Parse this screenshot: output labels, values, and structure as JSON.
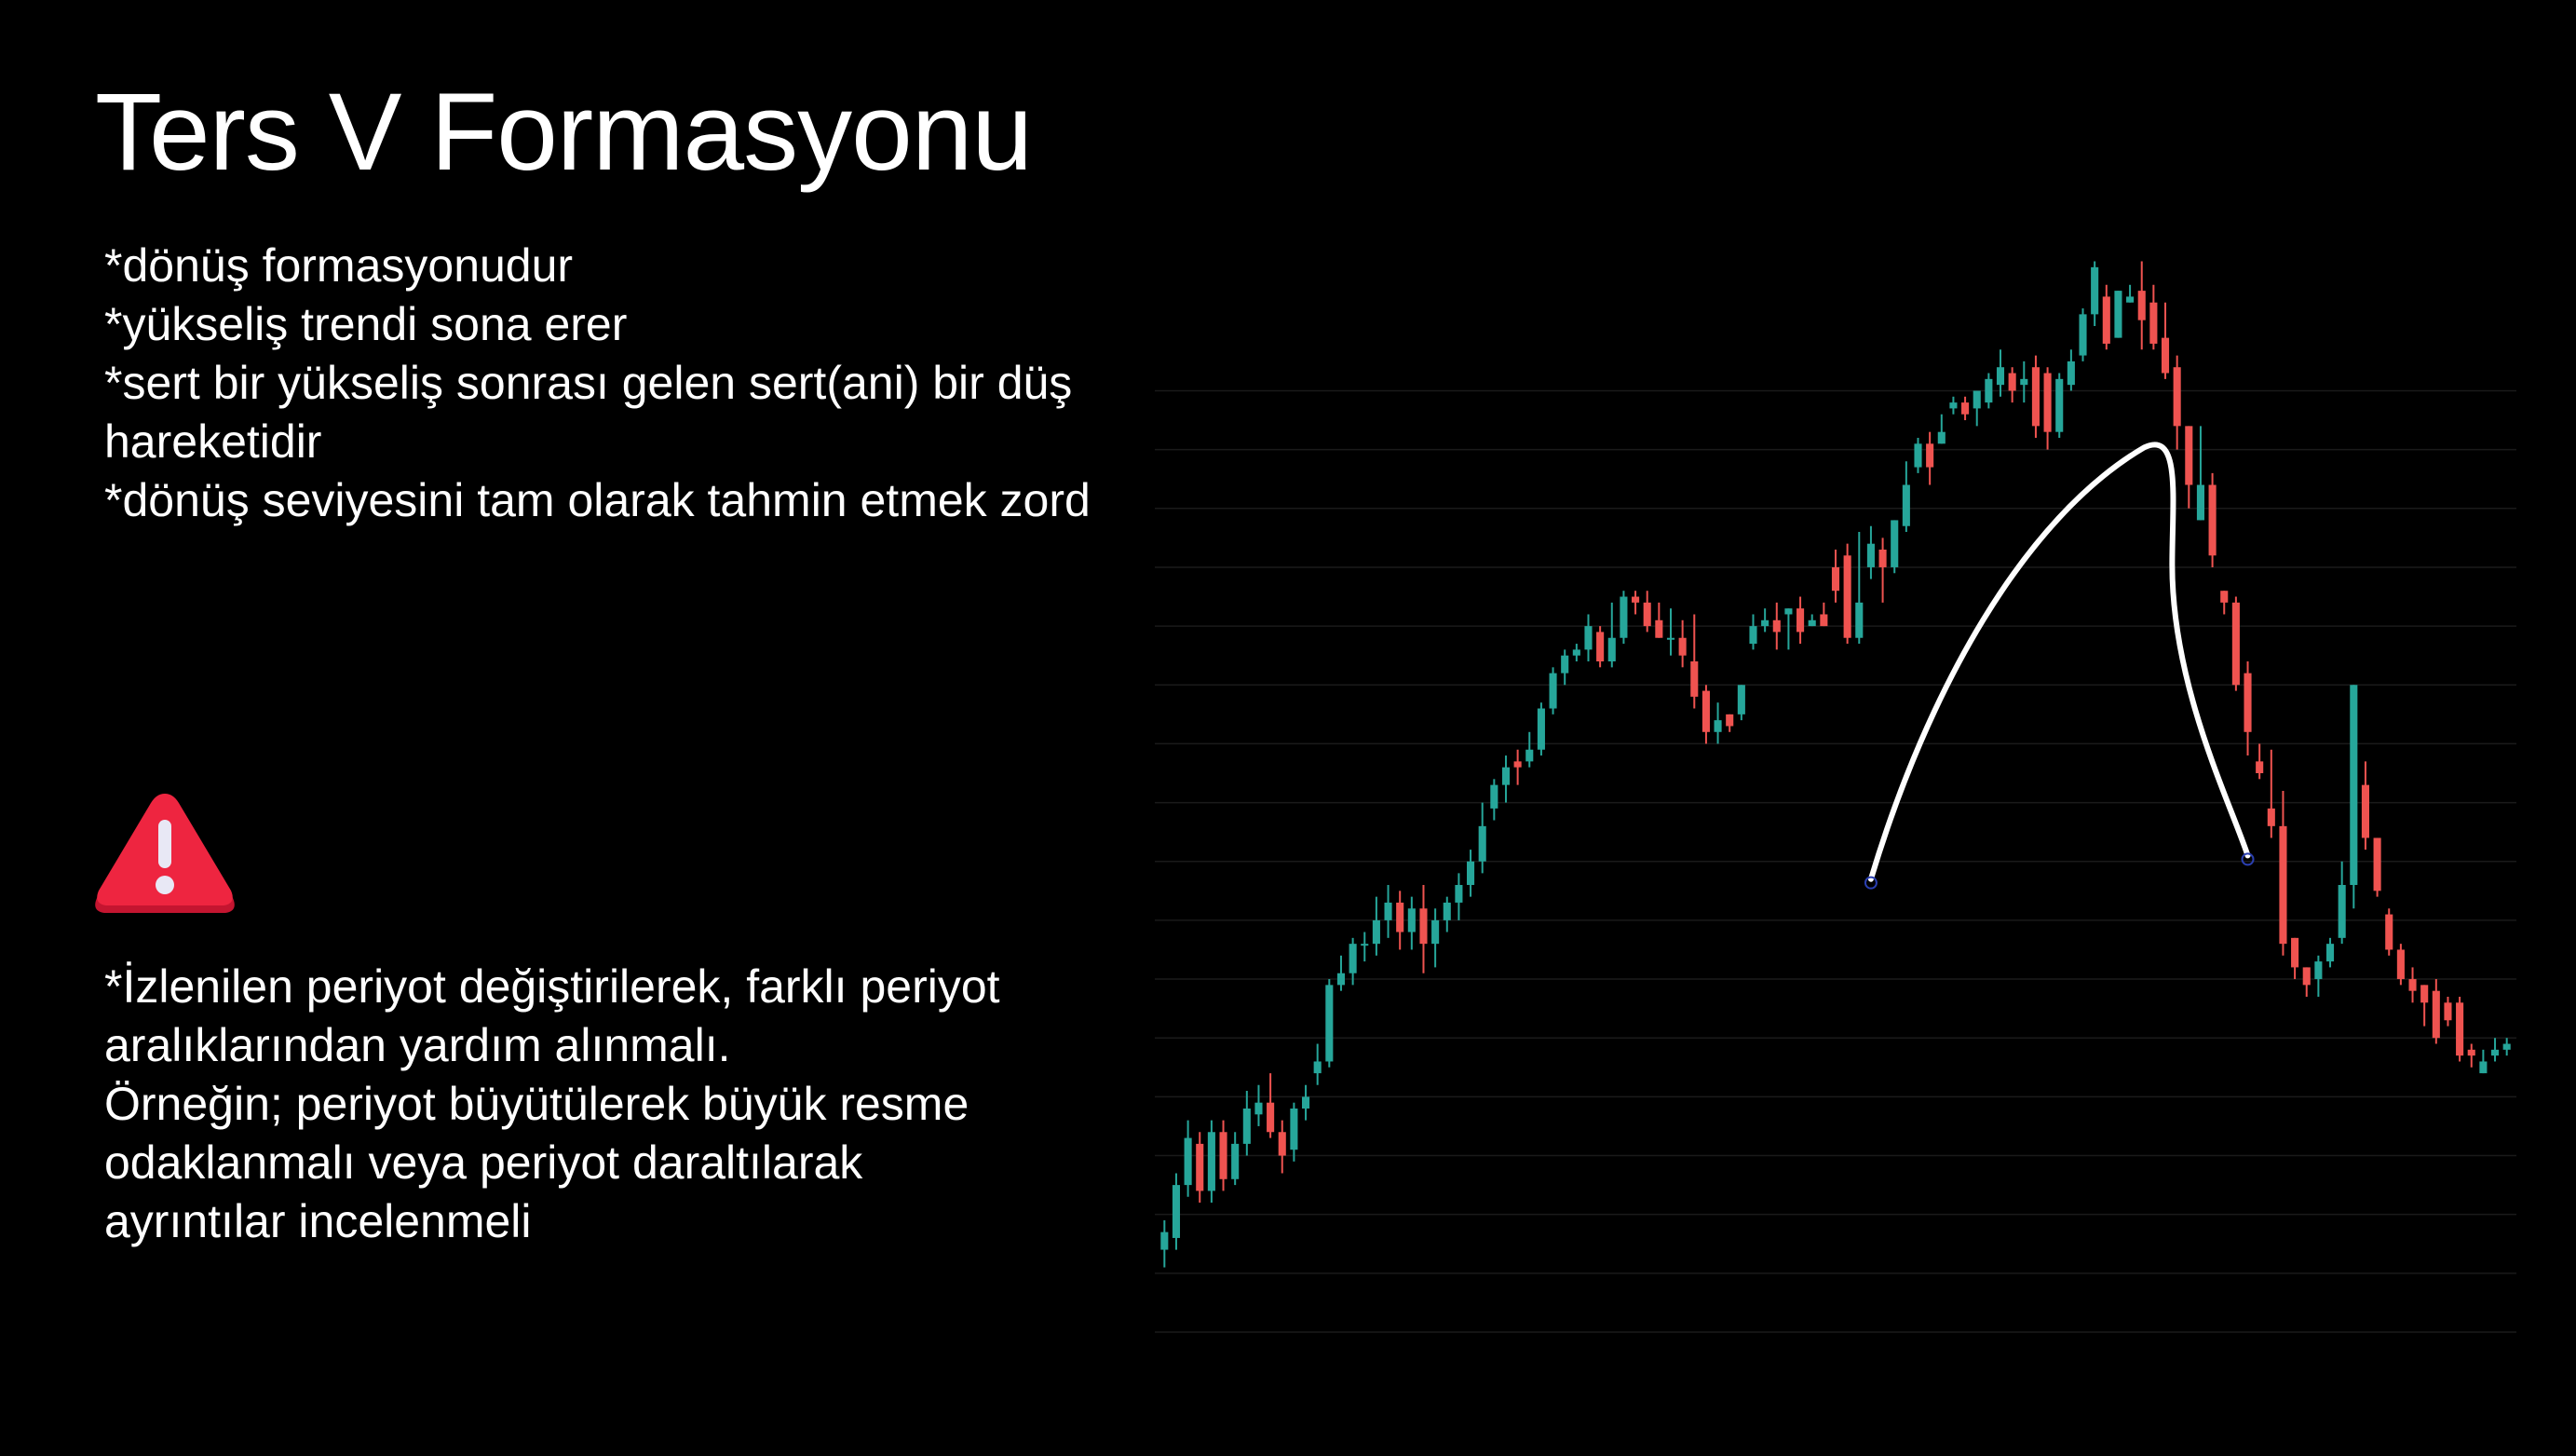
{
  "title": "Ters V Formasyonu",
  "bullets_top": [
    "*dönüş formasyonudur",
    "*yükseliş trendi sona erer",
    "*sert bir yükseliş sonrası gelen sert(ani) bir düş",
    "hareketidir",
    "*dönüş seviyesini tam olarak tahmin etmek zord"
  ],
  "bullets_bottom": [
    "*İzlenilen periyot değiştirilerek, farklı periyot",
    "aralıklarından yardım alınmalı.",
    "Örneğin; periyot büyütülerek büyük resme",
    "odaklanmalı veya periyot daraltılarak",
    "ayrıntılar incelenmeli"
  ],
  "warning_icon": "warning-triangle-icon",
  "colors": {
    "background": "#000000",
    "bullish": "#26a69a",
    "bearish": "#ef5350",
    "annotation": "#ffffff",
    "warning": "#e8203a"
  },
  "chart_data": {
    "type": "candlestick",
    "title": "",
    "xlabel": "",
    "ylabel": "",
    "grid": true,
    "ylim": [
      5,
      100
    ],
    "candles": [
      [
        12,
        13.5,
        10.5,
        14.5
      ],
      [
        13,
        17.5,
        12,
        18.5
      ],
      [
        17.5,
        21.5,
        16.5,
        23
      ],
      [
        21,
        17,
        16,
        22
      ],
      [
        17,
        22,
        16,
        23
      ],
      [
        22,
        18,
        17,
        23
      ],
      [
        18,
        21,
        17.5,
        22
      ],
      [
        21,
        24,
        20,
        25.5
      ],
      [
        23.5,
        24.5,
        22.5,
        26
      ],
      [
        24.5,
        22,
        21.5,
        27
      ],
      [
        22,
        20,
        18.5,
        23
      ],
      [
        20.5,
        24,
        19.5,
        24.5
      ],
      [
        24,
        25,
        23,
        26
      ],
      [
        27,
        28,
        26,
        29.5
      ],
      [
        28,
        34.5,
        27.5,
        35
      ],
      [
        34.5,
        35.5,
        34,
        37
      ],
      [
        35.5,
        38,
        34.5,
        38.5
      ],
      [
        38,
        38,
        36.5,
        39
      ],
      [
        38,
        40,
        37,
        42
      ],
      [
        40,
        41.5,
        38.5,
        43
      ],
      [
        41.5,
        39,
        37.5,
        42.5
      ],
      [
        39,
        41,
        37.5,
        42
      ],
      [
        41,
        38,
        35.5,
        43
      ],
      [
        38,
        40,
        36,
        41
      ],
      [
        40,
        41.5,
        39,
        42
      ],
      [
        41.5,
        43,
        40,
        44
      ],
      [
        43,
        45,
        42,
        46
      ],
      [
        45,
        48,
        44,
        50
      ],
      [
        49.5,
        51.5,
        48.5,
        52
      ],
      [
        51.5,
        53,
        50,
        54
      ],
      [
        53.5,
        53,
        51.5,
        54.5
      ],
      [
        53.5,
        54.5,
        53,
        56
      ],
      [
        54.5,
        58,
        54,
        58.5
      ],
      [
        58,
        61,
        57.5,
        61.5
      ],
      [
        61,
        62.5,
        60,
        63
      ],
      [
        62.5,
        63,
        62,
        63.5
      ],
      [
        63,
        65,
        62,
        66
      ],
      [
        64.5,
        62,
        61.5,
        65
      ],
      [
        62,
        64,
        61.5,
        67
      ],
      [
        64,
        67.5,
        63.5,
        68
      ],
      [
        67.5,
        67,
        66,
        68
      ],
      [
        67,
        65,
        64.5,
        68
      ],
      [
        65.5,
        64,
        64,
        67
      ],
      [
        64,
        64,
        62.5,
        66.5
      ],
      [
        64,
        62.5,
        61.5,
        65.5
      ],
      [
        62,
        59,
        58,
        66
      ],
      [
        59.5,
        56,
        55,
        60
      ],
      [
        56,
        57,
        55,
        58.5
      ],
      [
        57.5,
        56.5,
        56,
        57.5
      ],
      [
        57.5,
        60,
        57,
        60
      ],
      [
        63.5,
        65,
        63,
        66
      ],
      [
        65,
        65.5,
        64.5,
        66.5
      ],
      [
        65.5,
        64.5,
        63,
        67
      ],
      [
        66,
        66.5,
        63,
        66.5
      ],
      [
        66.5,
        64.5,
        63.5,
        67.5
      ],
      [
        65,
        65.5,
        65,
        66
      ],
      [
        66,
        65,
        65,
        67
      ],
      [
        70,
        68,
        67,
        71.5
      ],
      [
        71,
        64,
        63.5,
        72
      ],
      [
        64,
        67,
        63.5,
        73
      ],
      [
        70,
        72,
        69,
        73.5
      ],
      [
        71.5,
        70,
        67,
        72.5
      ],
      [
        70,
        74,
        69.5,
        74
      ],
      [
        73.5,
        77,
        73,
        79
      ],
      [
        78.5,
        80.5,
        78,
        81
      ],
      [
        80.5,
        78.5,
        77,
        81.5
      ],
      [
        80.5,
        81.5,
        80.5,
        83
      ],
      [
        83.5,
        84,
        83,
        84.5
      ],
      [
        84,
        83,
        82.5,
        84.5
      ],
      [
        83.5,
        85,
        82,
        85
      ],
      [
        84,
        86,
        83.5,
        86.5
      ],
      [
        85.5,
        87,
        84.5,
        88.5
      ],
      [
        86.5,
        85,
        84,
        87
      ],
      [
        85.5,
        86,
        84,
        87.5
      ],
      [
        87,
        82,
        81,
        88
      ],
      [
        86.5,
        81.5,
        80,
        87
      ],
      [
        81.5,
        86,
        81,
        86.5
      ],
      [
        85.5,
        87.5,
        85,
        88.5
      ],
      [
        88,
        91.5,
        87.5,
        92
      ],
      [
        91.5,
        95.5,
        90.5,
        96
      ],
      [
        93,
        89,
        88.5,
        94
      ],
      [
        89.5,
        93.5,
        89.5,
        93.5
      ],
      [
        92.5,
        93,
        92.5,
        94
      ],
      [
        93.5,
        91,
        88.5,
        96
      ],
      [
        92.5,
        89,
        88.5,
        94
      ],
      [
        89.5,
        86.5,
        86,
        92.5
      ],
      [
        87,
        82,
        80,
        88
      ],
      [
        82,
        77,
        75,
        82
      ],
      [
        74,
        77,
        74,
        82
      ],
      [
        77,
        71,
        70,
        78
      ],
      [
        68,
        67,
        66,
        68
      ],
      [
        67,
        60,
        59.5,
        67.5
      ],
      [
        61,
        56,
        54,
        62
      ],
      [
        53.5,
        52.5,
        52,
        55
      ],
      [
        49.5,
        48,
        47,
        54.5
      ],
      [
        48,
        38,
        37,
        51
      ],
      [
        38.5,
        36,
        35,
        38.5
      ],
      [
        36,
        34.5,
        33.5,
        36
      ],
      [
        35,
        36.5,
        33.5,
        37
      ],
      [
        36.5,
        38,
        36,
        38.5
      ],
      [
        38.5,
        43,
        38,
        45
      ],
      [
        43,
        60,
        41,
        60
      ],
      [
        51.5,
        47,
        46,
        53.5
      ],
      [
        47,
        42.5,
        42,
        47
      ],
      [
        40.5,
        37.5,
        37,
        41
      ],
      [
        37.5,
        35,
        34.5,
        38
      ],
      [
        35,
        34,
        33,
        36
      ],
      [
        34.5,
        33,
        31,
        34.5
      ],
      [
        34,
        30,
        29.5,
        35
      ],
      [
        33,
        31.5,
        31,
        33.5
      ],
      [
        33,
        28.5,
        28,
        33.5
      ],
      [
        29,
        28.5,
        27.5,
        29.5
      ],
      [
        27,
        28,
        27,
        29
      ],
      [
        28.5,
        29,
        28,
        30
      ],
      [
        29,
        29.5,
        28.5,
        30
      ]
    ],
    "annotation": {
      "type": "inverted-v",
      "start": [
        60.5,
        43.5
      ],
      "peak": [
        84.5,
        80.5
      ],
      "end": [
        92.5,
        45.5
      ]
    }
  }
}
